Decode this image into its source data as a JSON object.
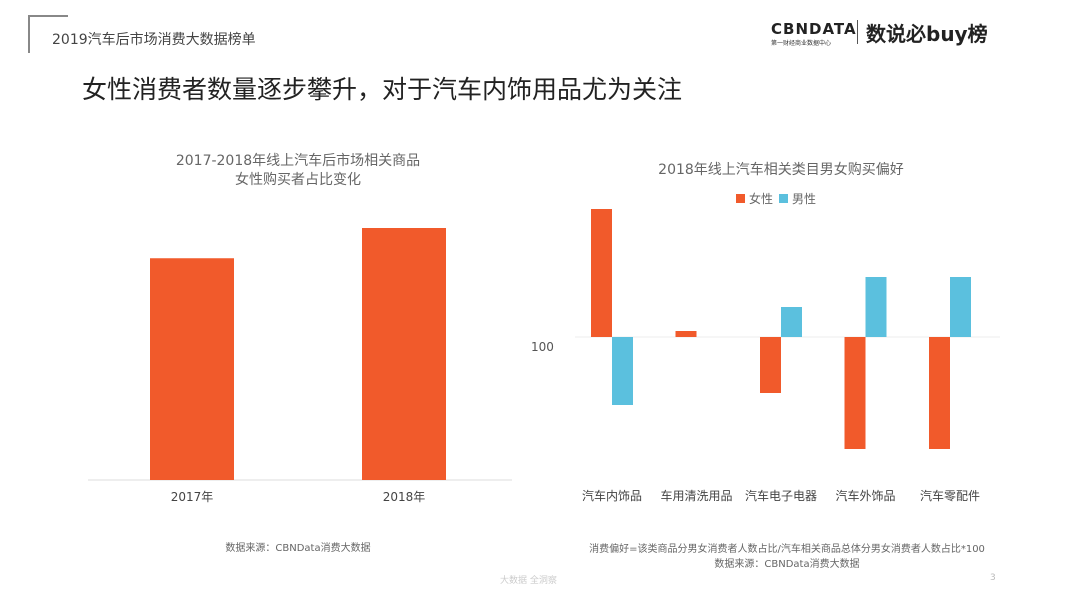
{
  "header": {
    "series_title": "2019汽车后市场消费大数据榜单",
    "logo_text": "CBNDATA",
    "logo_subtitle": "第一财经商业数据中心",
    "logo_right": "数说必buy榜"
  },
  "headline": "女性消费者数量逐步攀升，对于汽车内饰用品尤为关注",
  "colors": {
    "female": "#F15A2B",
    "male": "#5BC0DE"
  },
  "chart_data": [
    {
      "type": "bar",
      "title": "2017-2018年线上汽车后市场相关商品\n女性购买者占比变化",
      "title_lines": [
        "2017-2018年线上汽车后市场相关商品",
        "女性购买者占比变化"
      ],
      "categories": [
        "2017年",
        "2018年"
      ],
      "values": [
        0.88,
        1.0
      ],
      "value_note": "",
      "ylim": [
        0,
        1.0
      ],
      "grid": false,
      "source": "数据来源：CBNData消费大数据"
    },
    {
      "type": "bar",
      "title": "2018年线上汽车相关类目男女购买偏好",
      "categories": [
        "汽车内饰品",
        "车用清洗用品",
        "汽车电子电器",
        "汽车外饰品",
        "汽车零配件"
      ],
      "baseline": 100,
      "baseline_label": "100",
      "ylim": [
        40,
        170
      ],
      "series": [
        {
          "name": "女性",
          "values": [
            164,
            103,
            72,
            44,
            44
          ]
        },
        {
          "name": "男性",
          "values": [
            66,
            100,
            115,
            130,
            130
          ]
        }
      ],
      "legend": "top",
      "grid": false,
      "formula_note": "消费偏好=该类商品分男女消费者人数占比/汽车相关商品总体分男女消费者人数占比*100",
      "source": "数据来源：CBNData消费大数据"
    }
  ],
  "footer": {
    "mark": "大数据 全洞察",
    "page": "3"
  }
}
